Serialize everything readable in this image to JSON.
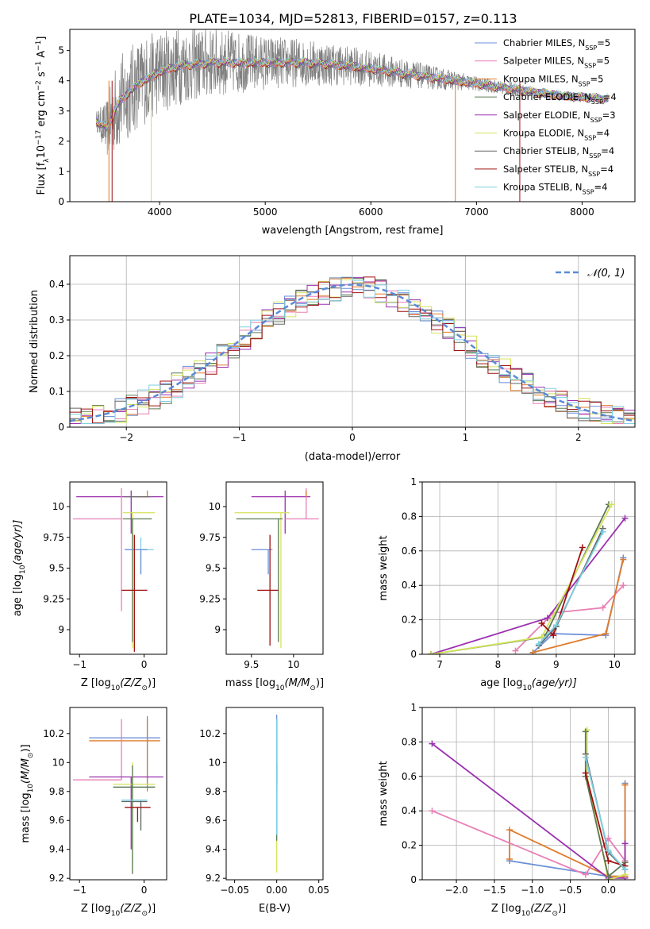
{
  "figure": {
    "title": "PLATE=1034, MJD=52813, FIBERID=0157, z=0.113"
  },
  "colors": {
    "chabrier_miles": "#6a8fd8",
    "salpeter_miles": "#e87fb5",
    "kroupa_miles": "#e07b2a",
    "chabrier_elodie": "#5c7a55",
    "salpeter_elodie": "#9b30b0",
    "kroupa_elodie": "#d4e35a",
    "chabrier_stelib": "#666666",
    "salpeter_stelib": "#a01010",
    "kroupa_stelib": "#7dcfe0",
    "data_spectrum": "#808080",
    "normal_curve": "#5b8ad6",
    "grid": "#b0b0b0"
  },
  "chart_data": [
    {
      "id": "spectrum",
      "type": "line",
      "title": "",
      "xlabel": "wavelength [Angstrom, rest frame]",
      "ylabel_main": "Flux [f",
      "ylabel_sub": "λ",
      "ylabel_rest": "10",
      "ylabel_exp": "−17",
      "ylabel_units": " erg cm",
      "ylabel_units_exp": "−2",
      "ylabel_units2": " s",
      "ylabel_units2_exp": "−1",
      "ylabel_units3": " A",
      "ylabel_units3_exp": "−1",
      "ylabel_end": "]",
      "xlim": [
        3150,
        8500
      ],
      "ylim": [
        0,
        5.7
      ],
      "xticks": [
        4000,
        5000,
        6000,
        7000,
        8000
      ],
      "yticks": [
        0,
        1,
        2,
        3,
        4,
        5
      ],
      "grid": false,
      "legend_placement": "right",
      "legend": [
        {
          "name": "Chabrier MILES, N",
          "sub": "SSP",
          "suffix": "=5",
          "color_key": "chabrier_miles"
        },
        {
          "name": "Salpeter MILES, N",
          "sub": "SSP",
          "suffix": "=5",
          "color_key": "salpeter_miles"
        },
        {
          "name": "Kroupa MILES, N",
          "sub": "SSP",
          "suffix": "=5",
          "color_key": "kroupa_miles"
        },
        {
          "name": "Chabrier ELODIE, N",
          "sub": "SSP",
          "suffix": "=4",
          "color_key": "chabrier_elodie"
        },
        {
          "name": "Salpeter ELODIE, N",
          "sub": "SSP",
          "suffix": "=3",
          "color_key": "salpeter_elodie"
        },
        {
          "name": "Kroupa ELODIE, N",
          "sub": "SSP",
          "suffix": "=4",
          "color_key": "kroupa_elodie"
        },
        {
          "name": "Chabrier STELIB, N",
          "sub": "SSP",
          "suffix": "=4",
          "color_key": "chabrier_stelib"
        },
        {
          "name": "Salpeter STELIB, N",
          "sub": "SSP",
          "suffix": "=4",
          "color_key": "salpeter_stelib"
        },
        {
          "name": "Kroupa STELIB, N",
          "sub": "SSP",
          "suffix": "=4",
          "color_key": "kroupa_stelib"
        }
      ],
      "continuum": [
        [
          3400,
          2.7
        ],
        [
          3500,
          2.4
        ],
        [
          3600,
          3.2
        ],
        [
          3700,
          3.6
        ],
        [
          3800,
          3.9
        ],
        [
          3900,
          4.1
        ],
        [
          4000,
          4.3
        ],
        [
          4200,
          4.5
        ],
        [
          4500,
          4.6
        ],
        [
          5000,
          4.6
        ],
        [
          5400,
          4.6
        ],
        [
          5800,
          4.5
        ],
        [
          6200,
          4.3
        ],
        [
          6600,
          4.1
        ],
        [
          7000,
          3.9
        ],
        [
          7400,
          3.7
        ],
        [
          7800,
          3.5
        ],
        [
          8250,
          3.4
        ]
      ],
      "noise_scale": [
        [
          3400,
          0.3
        ],
        [
          3600,
          1.6
        ],
        [
          4000,
          1.4
        ],
        [
          5000,
          0.9
        ],
        [
          6000,
          0.6
        ],
        [
          7000,
          0.25
        ],
        [
          8250,
          0.12
        ]
      ],
      "drop_lines": [
        {
          "x": 3520,
          "color_key": "kroupa_miles"
        },
        {
          "x": 3550,
          "color_key": "salpeter_stelib"
        },
        {
          "x": 3920,
          "color_key": "kroupa_elodie"
        },
        {
          "x": 6800,
          "color_key": "kroupa_miles"
        },
        {
          "x": 7410,
          "color_key": "salpeter_stelib"
        }
      ]
    },
    {
      "id": "residual_hist",
      "type": "line",
      "title": "",
      "xlabel": "(data-model)/error",
      "ylabel": "Normed distribution",
      "xlim": [
        -2.5,
        2.5
      ],
      "ylim": [
        0,
        0.48
      ],
      "xticks": [
        -2,
        -1,
        0,
        1,
        2
      ],
      "yticks": [
        0.0,
        0.1,
        0.2,
        0.3,
        0.4
      ],
      "grid": true,
      "legend_placement": "top-right",
      "normal_label": "𝒩(0, 1)",
      "bin_width": 0.1
    },
    {
      "id": "age_vs_Z",
      "type": "scatter",
      "xlabel": "Z [log",
      "xlabel_sub": "10",
      "xlabel_end": "(Z/Z",
      "xlabel_sun": "⊙",
      "xlabel_close": ")]",
      "ylabel": "age  [log",
      "ylabel_sub": "10",
      "ylabel_end": "(age/yr)]",
      "xlim": [
        -1.15,
        0.35
      ],
      "ylim": [
        8.8,
        10.2
      ],
      "xticks": [
        -1,
        0
      ],
      "yticks": [
        9.0,
        9.25,
        9.5,
        9.75,
        10.0
      ],
      "grid": false,
      "points": [
        {
          "series": "salpeter_elodie",
          "x": -0.2,
          "y": 10.08,
          "xerr": [
            0.85,
            0.5
          ],
          "yerr": [
            0.3,
            0.05
          ]
        },
        {
          "series": "salpeter_miles",
          "x": -0.35,
          "y": 9.9,
          "xerr": [
            0.75,
            0.0
          ],
          "yerr": [
            0.75,
            0.25
          ]
        },
        {
          "series": "kroupa_miles",
          "x": 0.05,
          "y": 10.08,
          "xerr": [
            0.15,
            0.0
          ],
          "yerr": [
            0.0,
            0.05
          ]
        },
        {
          "series": "kroupa_elodie",
          "x": -0.18,
          "y": 9.95,
          "xerr": [
            0.15,
            0.35
          ],
          "yerr": [
            1.1,
            0.0
          ]
        },
        {
          "series": "chabrier_elodie",
          "x": -0.18,
          "y": 9.9,
          "xerr": [
            0.15,
            0.3
          ],
          "yerr": [
            1.0,
            0.0
          ]
        },
        {
          "series": "chabrier_stelib",
          "x": -0.1,
          "y": 10.08,
          "xerr": [
            0.2,
            0.2
          ],
          "yerr": [
            0.0,
            0.0
          ]
        },
        {
          "series": "kroupa_stelib",
          "x": -0.05,
          "y": 9.65,
          "xerr": [
            0.25,
            0.2
          ],
          "yerr": [
            0.2,
            0.1
          ]
        },
        {
          "series": "chabrier_miles",
          "x": -0.05,
          "y": 9.65,
          "xerr": [
            0.25,
            0.1
          ],
          "yerr": [
            0.2,
            0.0
          ]
        },
        {
          "series": "salpeter_stelib",
          "x": -0.15,
          "y": 9.32,
          "xerr": [
            0.2,
            0.2
          ],
          "yerr": [
            0.5,
            0.45
          ]
        }
      ]
    },
    {
      "id": "age_vs_mass",
      "type": "scatter",
      "xlabel": "mass [log",
      "xlabel_sub": "10",
      "xlabel_end": "(M/M",
      "xlabel_sun": "⊙",
      "xlabel_close": ")]",
      "xlim": [
        9.2,
        10.35
      ],
      "ylim": [
        8.8,
        10.2
      ],
      "xticks": [
        9.5,
        10.0
      ],
      "yticks": [
        9.0,
        9.25,
        9.5,
        9.75,
        10.0
      ],
      "grid": false,
      "points": [
        {
          "series": "salpeter_elodie",
          "x": 9.9,
          "y": 10.08,
          "xerr": [
            0.4,
            0.3
          ],
          "yerr": [
            0.3,
            0.05
          ]
        },
        {
          "series": "salpeter_miles",
          "x": 10.15,
          "y": 9.9,
          "xerr": [
            0.25,
            0.15
          ],
          "yerr": [
            0.0,
            0.25
          ]
        },
        {
          "series": "kroupa_miles",
          "x": 10.15,
          "y": 10.08,
          "xerr": [
            0.0,
            0.0
          ],
          "yerr": [
            0.0,
            0.05
          ]
        },
        {
          "series": "kroupa_elodie",
          "x": 9.85,
          "y": 9.95,
          "xerr": [
            0.55,
            0.1
          ],
          "yerr": [
            1.1,
            0.0
          ]
        },
        {
          "series": "chabrier_elodie",
          "x": 9.82,
          "y": 9.9,
          "xerr": [
            0.5,
            0.05
          ],
          "yerr": [
            1.0,
            0.0
          ]
        },
        {
          "series": "chabrier_stelib",
          "x": 9.95,
          "y": 10.08,
          "xerr": [
            0.0,
            0.0
          ],
          "yerr": [
            0.0,
            0.0
          ]
        },
        {
          "series": "kroupa_stelib",
          "x": 9.7,
          "y": 9.65,
          "xerr": [
            0.0,
            0.0
          ],
          "yerr": [
            0.0,
            0.0
          ]
        },
        {
          "series": "chabrier_miles",
          "x": 9.7,
          "y": 9.65,
          "xerr": [
            0.2,
            0.05
          ],
          "yerr": [
            0.2,
            0.0
          ]
        },
        {
          "series": "salpeter_stelib",
          "x": 9.72,
          "y": 9.32,
          "xerr": [
            0.15,
            0.1
          ],
          "yerr": [
            0.45,
            0.45
          ]
        }
      ]
    },
    {
      "id": "mass_weight_vs_age",
      "type": "line",
      "xlabel": "age  [log",
      "xlabel_sub": "10",
      "xlabel_end": "(age/yr)]",
      "ylabel": "mass weight",
      "xlim": [
        6.7,
        10.35
      ],
      "ylim": [
        0,
        1.0
      ],
      "xticks": [
        7,
        8,
        9,
        10
      ],
      "yticks": [
        0.0,
        0.2,
        0.4,
        0.6,
        0.8,
        1.0
      ],
      "grid": true,
      "series": [
        {
          "series": "chabrier_miles",
          "x": [
            8.6,
            8.95,
            9.85,
            10.15
          ],
          "y": [
            0.01,
            0.12,
            0.11,
            0.56
          ]
        },
        {
          "series": "salpeter_miles",
          "x": [
            8.3,
            8.95,
            9.8,
            10.15
          ],
          "y": [
            0.02,
            0.24,
            0.27,
            0.4
          ]
        },
        {
          "series": "kroupa_miles",
          "x": [
            8.6,
            9.85,
            10.15
          ],
          "y": [
            0.01,
            0.12,
            0.55
          ]
        },
        {
          "series": "chabrier_elodie",
          "x": [
            6.85,
            8.8,
            9.9
          ],
          "y": [
            0.0,
            0.1,
            0.87
          ]
        },
        {
          "series": "salpeter_elodie",
          "x": [
            6.85,
            8.85,
            10.18
          ],
          "y": [
            0.0,
            0.21,
            0.79
          ]
        },
        {
          "series": "kroupa_elodie",
          "x": [
            6.85,
            8.75,
            9.95
          ],
          "y": [
            0.0,
            0.1,
            0.87
          ]
        },
        {
          "series": "chabrier_stelib",
          "x": [
            8.7,
            9.0,
            9.8
          ],
          "y": [
            0.05,
            0.16,
            0.73
          ]
        },
        {
          "series": "salpeter_stelib",
          "x": [
            8.75,
            8.95,
            9.45
          ],
          "y": [
            0.18,
            0.11,
            0.62
          ]
        },
        {
          "series": "kroupa_stelib",
          "x": [
            8.7,
            9.0,
            9.8
          ],
          "y": [
            0.06,
            0.17,
            0.71
          ]
        }
      ]
    },
    {
      "id": "mass_vs_Z",
      "type": "scatter",
      "xlabel": "Z [log",
      "xlabel_sub": "10",
      "xlabel_end": "(Z/Z",
      "xlabel_sun": "⊙",
      "xlabel_close": ")]",
      "ylabel": "mass [log",
      "ylabel_sub": "10",
      "ylabel_end": "(M/M",
      "ylabel_sun": "⊙",
      "ylabel_close": ")]",
      "xlim": [
        -1.15,
        0.35
      ],
      "ylim": [
        9.19,
        10.38
      ],
      "xticks": [
        -1,
        0
      ],
      "yticks": [
        9.2,
        9.4,
        9.6,
        9.8,
        10.0,
        10.2
      ],
      "grid": false,
      "points": [
        {
          "series": "chabrier_miles",
          "x": 0.05,
          "y": 10.17,
          "xerr": [
            0.9,
            0.2
          ],
          "yerr": [
            0.35,
            0.15
          ]
        },
        {
          "series": "kroupa_miles",
          "x": 0.05,
          "y": 10.15,
          "xerr": [
            0.9,
            0.2
          ],
          "yerr": [
            0.35,
            0.15
          ]
        },
        {
          "series": "salpeter_miles",
          "x": -0.35,
          "y": 9.88,
          "xerr": [
            0.75,
            0.0
          ],
          "yerr": [
            0.0,
            0.42
          ]
        },
        {
          "series": "salpeter_elodie",
          "x": -0.2,
          "y": 9.9,
          "xerr": [
            0.65,
            0.5
          ],
          "yerr": [
            0.5,
            0.0
          ]
        },
        {
          "series": "kroupa_elodie",
          "x": -0.18,
          "y": 9.85,
          "xerr": [
            0.3,
            0.35
          ],
          "yerr": [
            0.6,
            0.15
          ]
        },
        {
          "series": "chabrier_elodie",
          "x": -0.18,
          "y": 9.83,
          "xerr": [
            0.3,
            0.35
          ],
          "yerr": [
            0.6,
            0.15
          ]
        },
        {
          "series": "kroupa_stelib",
          "x": -0.05,
          "y": 9.74,
          "xerr": [
            0.3,
            0.1
          ],
          "yerr": [
            0.2,
            0.0
          ]
        },
        {
          "series": "chabrier_stelib",
          "x": -0.05,
          "y": 9.73,
          "xerr": [
            0.3,
            0.1
          ],
          "yerr": [
            0.2,
            0.0
          ]
        },
        {
          "series": "salpeter_stelib",
          "x": -0.1,
          "y": 9.69,
          "xerr": [
            0.2,
            0.2
          ],
          "yerr": [
            0.1,
            0.0
          ]
        }
      ]
    },
    {
      "id": "mass_vs_ebv",
      "type": "scatter",
      "xlabel": "E(B-V)",
      "xlim": [
        -0.06,
        0.055
      ],
      "ylim": [
        9.19,
        10.38
      ],
      "xticks": [
        -0.05,
        0.0,
        0.05
      ],
      "xtick_labels": [
        "−0.05",
        "0.00",
        "0.05"
      ],
      "yticks": [
        9.2,
        9.4,
        9.6,
        9.8,
        10.0,
        10.2
      ],
      "grid": false,
      "segments": [
        {
          "series": "chabrier_miles",
          "y0": 9.75,
          "y1": 10.33
        },
        {
          "series": "kroupa_miles",
          "y0": 9.75,
          "y1": 10.3
        },
        {
          "series": "salpeter_miles",
          "y0": 9.8,
          "y1": 10.3
        },
        {
          "series": "salpeter_elodie",
          "y0": 9.9,
          "y1": 10.3
        },
        {
          "series": "kroupa_elodie",
          "y0": 9.24,
          "y1": 10.0
        },
        {
          "series": "chabrier_elodie",
          "y0": 9.46,
          "y1": 10.0
        },
        {
          "series": "salpeter_stelib",
          "y0": 9.85,
          "y1": 10.0
        },
        {
          "series": "kroupa_stelib",
          "y0": 9.5,
          "y1": 10.3
        }
      ]
    },
    {
      "id": "mass_weight_vs_Z",
      "type": "line",
      "xlabel": "Z [log",
      "xlabel_sub": "10",
      "xlabel_end": "(Z/Z",
      "xlabel_sun": "⊙",
      "xlabel_close": ")]",
      "ylabel": "mass weight",
      "xlim": [
        -2.45,
        0.35
      ],
      "ylim": [
        0,
        1.0
      ],
      "xticks": [
        -2.0,
        -1.5,
        -1.0,
        -0.5,
        0.0
      ],
      "xtick_labels": [
        "−2.0",
        "−1.5",
        "−1.0",
        "−0.5",
        "0.0"
      ],
      "yticks": [
        0.0,
        0.2,
        0.4,
        0.6,
        0.8,
        1.0
      ],
      "grid": true,
      "series": [
        {
          "series": "chabrier_miles",
          "x": [
            -1.3,
            0.0,
            0.22,
            0.22
          ],
          "y": [
            0.11,
            0.02,
            0.02,
            0.56
          ]
        },
        {
          "series": "kroupa_miles",
          "x": [
            -1.3,
            -1.3,
            0.0,
            0.22,
            0.22
          ],
          "y": [
            0.12,
            0.29,
            0.02,
            0.02,
            0.55
          ]
        },
        {
          "series": "salpeter_miles",
          "x": [
            -2.32,
            -0.3,
            0.0,
            0.22
          ],
          "y": [
            0.4,
            0.03,
            0.24,
            0.11
          ]
        },
        {
          "series": "salpeter_elodie",
          "x": [
            -2.32,
            0.0,
            0.22,
            0.22
          ],
          "y": [
            0.79,
            0.01,
            0.01,
            0.21
          ]
        },
        {
          "series": "kroupa_elodie",
          "x": [
            -0.28,
            -0.28,
            0.0,
            0.22
          ],
          "y": [
            0.87,
            0.6,
            0.0,
            0.03
          ]
        },
        {
          "series": "chabrier_elodie",
          "x": [
            -0.3,
            -0.3,
            0.0,
            0.22
          ],
          "y": [
            0.86,
            0.6,
            0.02,
            0.1
          ]
        },
        {
          "series": "chabrier_stelib",
          "x": [
            -0.3,
            0.0,
            0.22
          ],
          "y": [
            0.73,
            0.16,
            0.06
          ]
        },
        {
          "series": "salpeter_stelib",
          "x": [
            -0.3,
            0.0,
            0.22
          ],
          "y": [
            0.62,
            0.11,
            0.08
          ]
        },
        {
          "series": "kroupa_stelib",
          "x": [
            -0.3,
            0.0,
            0.22
          ],
          "y": [
            0.71,
            0.17,
            0.06
          ]
        }
      ]
    }
  ]
}
